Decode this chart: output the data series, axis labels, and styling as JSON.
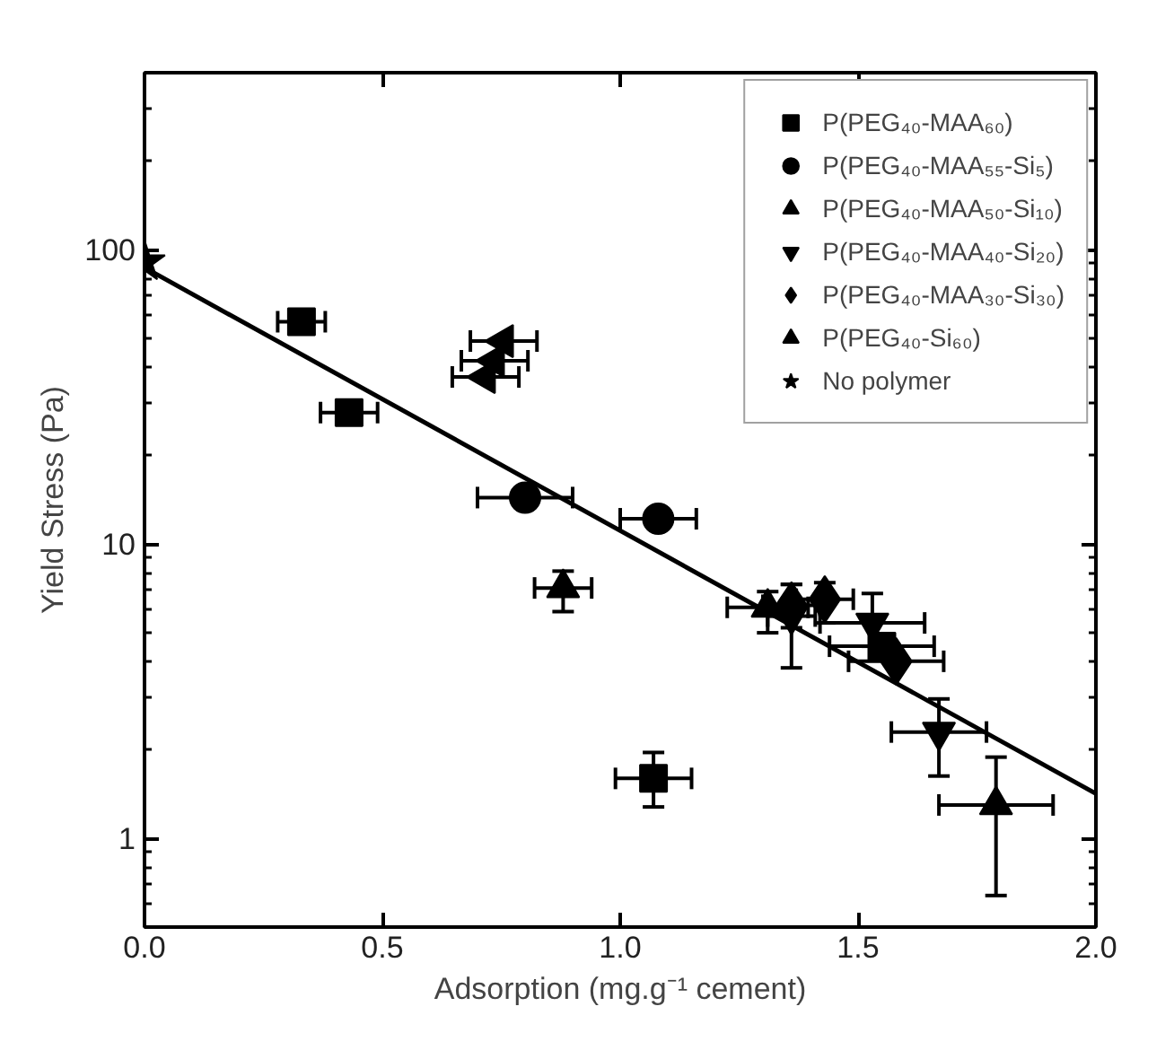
{
  "chart_data": {
    "type": "scatter",
    "xlabel": "Adsorption (mg.g⁻¹ cement)",
    "ylabel": "Yield Stress (Pa)",
    "log": "y",
    "grid": false,
    "legend": "top right",
    "xlim": [
      0,
      2.0
    ],
    "ylim": [
      0.5,
      400
    ],
    "xticks": [
      {
        "value": 0,
        "label": "0.0"
      },
      {
        "value": 0.5,
        "label": "0.5"
      },
      {
        "value": 1.0,
        "label": "1.0"
      },
      {
        "value": 1.5,
        "label": "1.5"
      },
      {
        "value": 2.0,
        "label": "2.0"
      }
    ],
    "yticks": [
      1,
      10,
      100
    ],
    "series": [
      {
        "name": "P(PEG₄₀-MAA₆₀)",
        "color": "#000000",
        "marker": "square",
        "x": [
          0.33,
          0.43,
          1.07,
          1.55
        ],
        "values": [
          57,
          28,
          1.6,
          4.5
        ],
        "errors": [
          null,
          null,
          [
            1.28,
            1.96
          ],
          null
        ],
        "xerrors": [
          0.05,
          0.06,
          0.08,
          0.11
        ]
      },
      {
        "name": "P(PEG₄₀-MAA₅₅-Si₅)",
        "color": "#000000",
        "marker": "circle",
        "x": [
          0.8,
          1.08
        ],
        "values": [
          14.4,
          12.2
        ],
        "errors": [
          null,
          null
        ],
        "xerrors": [
          0.1,
          0.08
        ]
      },
      {
        "name": "P(PEG₄₀-MAA₅₀-Si₁₀)",
        "color": "#000000",
        "marker": "triangle",
        "x": [
          0.88,
          1.31,
          1.79
        ],
        "values": [
          7.1,
          6.1,
          1.3
        ],
        "errors": [
          [
            5.9,
            8.1
          ],
          [
            5.0,
            6.9
          ],
          [
            0.64,
            1.89
          ]
        ],
        "xerrors": [
          0.06,
          0.085,
          0.12
        ]
      },
      {
        "name": "P(PEG₄₀-MAA₄₀-Si₂₀)",
        "color": "#000000",
        "marker": "triangle_down",
        "x": [
          1.36,
          1.53,
          1.67
        ],
        "values": [
          5.7,
          5.4,
          2.3
        ],
        "errors": [
          [
            3.8,
            7.3
          ],
          [
            4.5,
            6.8
          ],
          [
            1.63,
            2.98
          ]
        ],
        "xerrors": [
          0.05,
          0.11,
          0.1
        ]
      },
      {
        "name": "P(PEG₄₀-MAA₃₀-Si₃₀)",
        "color": "#000000",
        "marker": "diamond",
        "x": [
          1.36,
          1.43,
          1.58
        ],
        "values": [
          6.2,
          6.5,
          4.0
        ],
        "errors": [
          [
            5.2,
            7.3
          ],
          [
            5.4,
            7.4
          ],
          null
        ],
        "xerrors": [
          0.06,
          0.06,
          0.1
        ]
      },
      {
        "name": "P(PEG₄₀-Si₆₀)",
        "color": "#000000",
        "marker": "triangle_left",
        "x": [
          0.755,
          0.736,
          0.717
        ],
        "values": [
          49,
          42,
          37
        ],
        "errors": [
          null,
          null,
          null
        ],
        "xerrors": [
          0.07,
          0.07,
          0.07
        ]
      },
      {
        "name": "No polymer",
        "color": "#000000",
        "marker": "star",
        "x": [
          0
        ],
        "values": [
          91
        ],
        "errors": [
          null
        ],
        "xerrors": [
          null
        ]
      },
      {
        "type": "line",
        "color": "#000000",
        "line_style": "solid",
        "marker": "none",
        "x": [
          0,
          2.0
        ],
        "values": [
          87,
          1.42
        ]
      }
    ]
  }
}
